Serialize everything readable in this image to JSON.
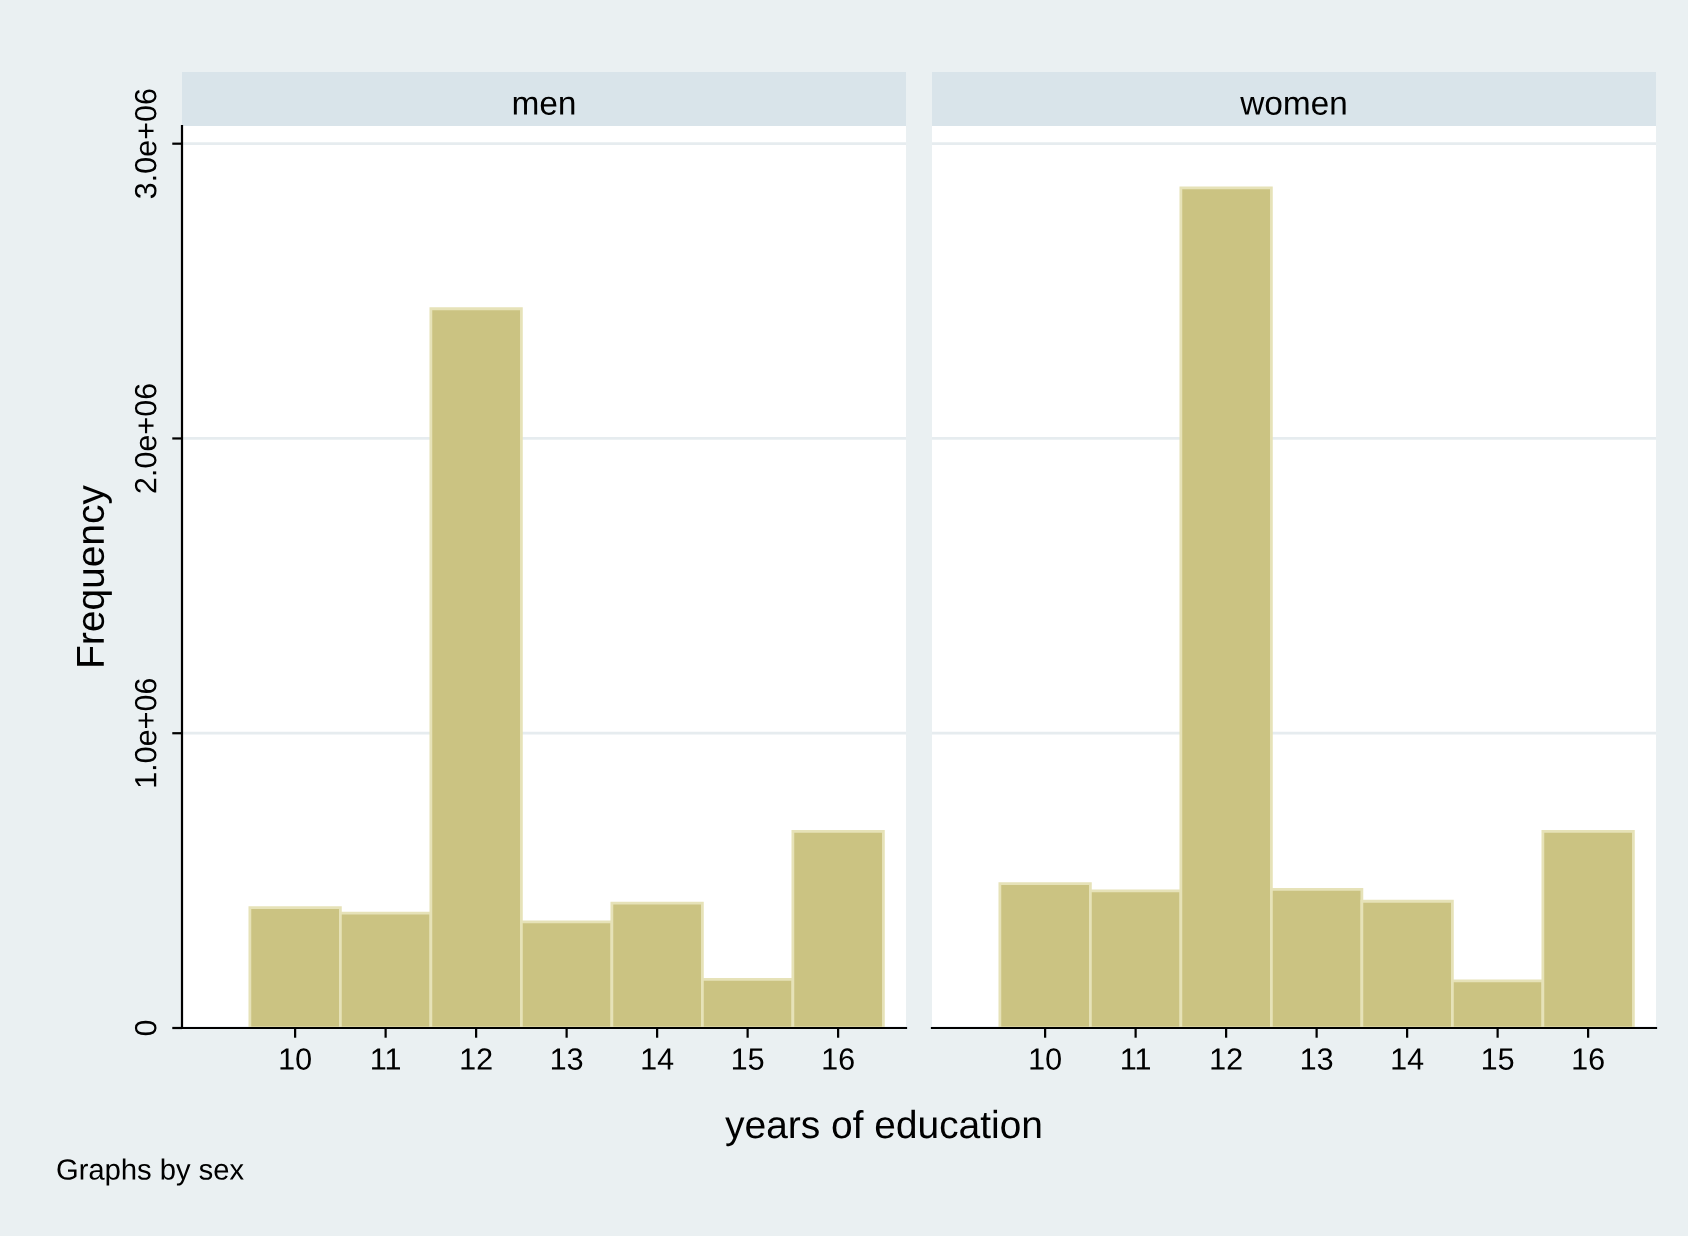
{
  "chart_data": [
    {
      "type": "histogram",
      "title": "men",
      "ylabel": "Frequency",
      "xlabel": "years of education",
      "annotations": [
        "Graphs by sex"
      ],
      "bins": [
        9.5,
        10.5,
        11.5,
        12.5,
        13.5,
        14.5,
        15.5,
        16.5
      ],
      "values": [
        408000,
        390000,
        2440000,
        360000,
        424000,
        165000,
        667000
      ],
      "color": "#cbc382",
      "xlim": [
        8.75,
        16.75
      ],
      "xticks": [
        10,
        11,
        12,
        13,
        14,
        15,
        16
      ],
      "ylim": [
        0,
        3060000
      ],
      "yticks": [
        {
          "value": 0,
          "label": "0"
        },
        {
          "value": 1000000,
          "label": "1.0e+06"
        },
        {
          "value": 2000000,
          "label": "2.0e+06"
        },
        {
          "value": 3000000,
          "label": "3.0e+06"
        }
      ],
      "grid": "y"
    },
    {
      "type": "histogram",
      "title": "women",
      "bins": [
        9.5,
        10.5,
        11.5,
        12.5,
        13.5,
        14.5,
        15.5,
        16.5
      ],
      "values": [
        490000,
        465000,
        2850000,
        470000,
        430000,
        160000,
        667000
      ],
      "color": "#cbc382",
      "xlim": [
        8.75,
        16.75
      ],
      "xticks": [
        10,
        11,
        12,
        13,
        14,
        15,
        16
      ],
      "ylim": [
        0,
        3060000
      ],
      "yticks": [
        {
          "value": 0,
          "label": null
        },
        {
          "value": 1000000,
          "label": null
        },
        {
          "value": 2000000,
          "label": null
        },
        {
          "value": 3000000,
          "label": null
        }
      ],
      "grid": "y",
      "tick_labels": "x"
    }
  ]
}
